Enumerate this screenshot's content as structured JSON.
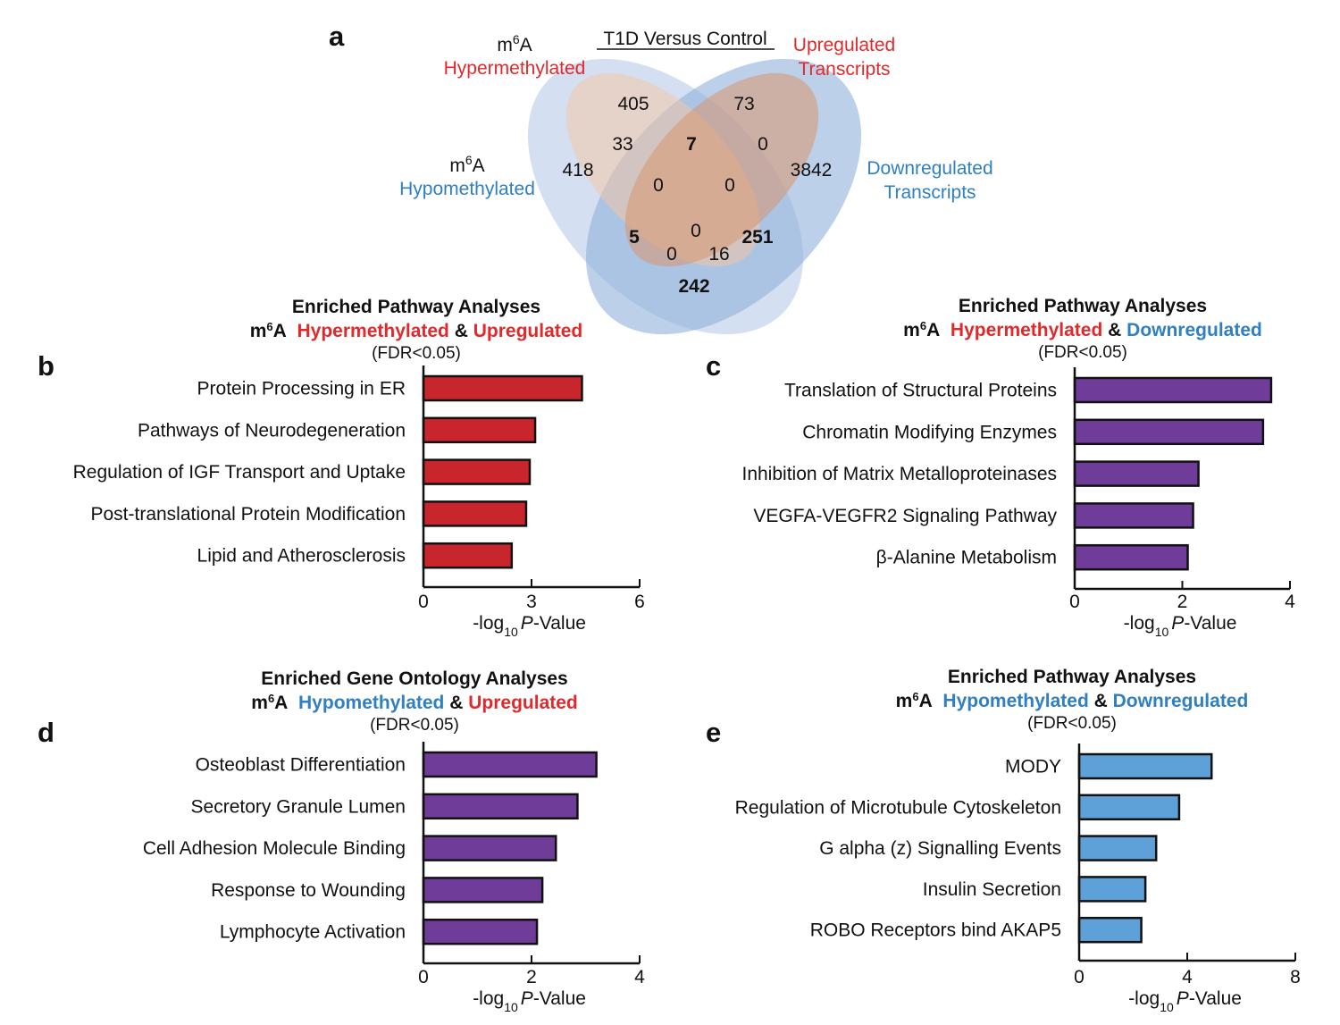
{
  "colors": {
    "red": "#e1292b",
    "blue": "#2f7fc1",
    "bar_red": "#c8262c",
    "bar_purple": "#6f3c99",
    "bar_blue": "#5ea0d8",
    "ell_hyper": "#f2c6a6",
    "ell_up": "#d9956d",
    "ell_hypo": "#b7c9e8",
    "ell_down": "#8fb3da"
  },
  "venn": {
    "panel_label": "a",
    "title": "T1D Versus Control",
    "set_labels": {
      "hyper_m": "m",
      "hyper_sup": "6",
      "hyper_a": "A",
      "hyper": "Hypermethylated",
      "hypo_m": "m",
      "hypo_sup": "6",
      "hypo_a": "A",
      "hypo": "Hypomethylated",
      "up_line1": "Upregulated",
      "up_line2": "Transcripts",
      "down_line1": "Downregulated",
      "down_line2": "Transcripts"
    },
    "counts": {
      "hyper_only": "405",
      "up_only": "73",
      "hypo_only": "418",
      "down_only": "3842",
      "hyper_up": "7",
      "hyper_hypo": "33",
      "up_down": "0",
      "hyper_down": "0",
      "hypo_up": "0",
      "hypo_down": "242",
      "hyper_up_down": "0",
      "hyper_hypo_up": "5",
      "hypo_up_down": "0",
      "hyper_hypo_down": "0",
      "hypo_down_16": "16",
      "hyper_down_251": "251"
    }
  },
  "chart_data": [
    {
      "type": "bar",
      "orientation": "horizontal",
      "panel_label": "b",
      "title": "Enriched Pathway Analyses",
      "subtitle": {
        "m": "m",
        "sup": "6",
        "a": "A",
        "part1": "Hypermethylated",
        "amp": "&",
        "part2": "Upregulated"
      },
      "note": "(FDR<0.05)",
      "categories": [
        "Protein Processing in ER",
        "Pathways of Neurodegeneration",
        "Regulation of IGF Transport and Uptake",
        "Post-translational Protein Modification",
        "Lipid and Atherosclerosis"
      ],
      "values": [
        4.4,
        3.1,
        2.95,
        2.85,
        2.45
      ],
      "xlim": [
        0,
        6
      ],
      "ticks": [
        "0",
        "3",
        "6"
      ],
      "xlabel": {
        "pre": "-log",
        "sub": "10",
        "italic": "P",
        "post": "-Value"
      },
      "color": "bar_red"
    },
    {
      "type": "bar",
      "orientation": "horizontal",
      "panel_label": "c",
      "title": "Enriched Pathway Analyses",
      "subtitle": {
        "m": "m",
        "sup": "6",
        "a": "A",
        "part1": "Hypermethylated",
        "amp": "&",
        "part2": "Downregulated"
      },
      "note": "(FDR<0.05)",
      "categories": [
        "Translation of Structural Proteins",
        "Chromatin Modifying Enzymes",
        "Inhibition of Matrix Metalloproteinases",
        "VEGFA-VEGFR2 Signaling Pathway",
        "β-Alanine Metabolism"
      ],
      "values": [
        3.65,
        3.5,
        2.3,
        2.2,
        2.1
      ],
      "xlim": [
        0,
        4
      ],
      "ticks": [
        "0",
        "2",
        "4"
      ],
      "xlabel": {
        "pre": "-log",
        "sub": "10",
        "italic": "P",
        "post": "-Value"
      },
      "color": "bar_purple"
    },
    {
      "type": "bar",
      "orientation": "horizontal",
      "panel_label": "d",
      "title": "Enriched Gene Ontology Analyses",
      "subtitle": {
        "m": "m",
        "sup": "6",
        "a": "A",
        "part1": "Hypomethylated",
        "amp": "&",
        "part2": "Upregulated"
      },
      "note": "(FDR<0.05)",
      "categories": [
        "Osteoblast Differentiation",
        "Secretory Granule Lumen",
        "Cell Adhesion Molecule Binding",
        "Response to Wounding",
        "Lymphocyte Activation"
      ],
      "values": [
        3.2,
        2.85,
        2.45,
        2.2,
        2.1
      ],
      "xlim": [
        0,
        4
      ],
      "ticks": [
        "0",
        "2",
        "4"
      ],
      "xlabel": {
        "pre": "-log",
        "sub": "10",
        "italic": "P",
        "post": "-Value"
      },
      "color": "bar_purple"
    },
    {
      "type": "bar",
      "orientation": "horizontal",
      "panel_label": "e",
      "title": "Enriched Pathway Analyses",
      "subtitle": {
        "m": "m",
        "sup": "6",
        "a": "A",
        "part1": "Hypomethylated",
        "amp": "&",
        "part2": "Downregulated"
      },
      "note": "(FDR<0.05)",
      "categories": [
        "MODY",
        "Regulation of Microtubule Cytoskeleton",
        "G alpha (z) Signalling Events",
        "Insulin Secretion",
        "ROBO Receptors bind AKAP5"
      ],
      "values": [
        4.9,
        3.7,
        2.85,
        2.45,
        2.3
      ],
      "xlim": [
        0,
        8
      ],
      "ticks": [
        "0",
        "4",
        "8"
      ],
      "xlabel": {
        "pre": "-log",
        "sub": "10",
        "italic": "P",
        "post": "-Value"
      },
      "color": "bar_blue"
    }
  ]
}
